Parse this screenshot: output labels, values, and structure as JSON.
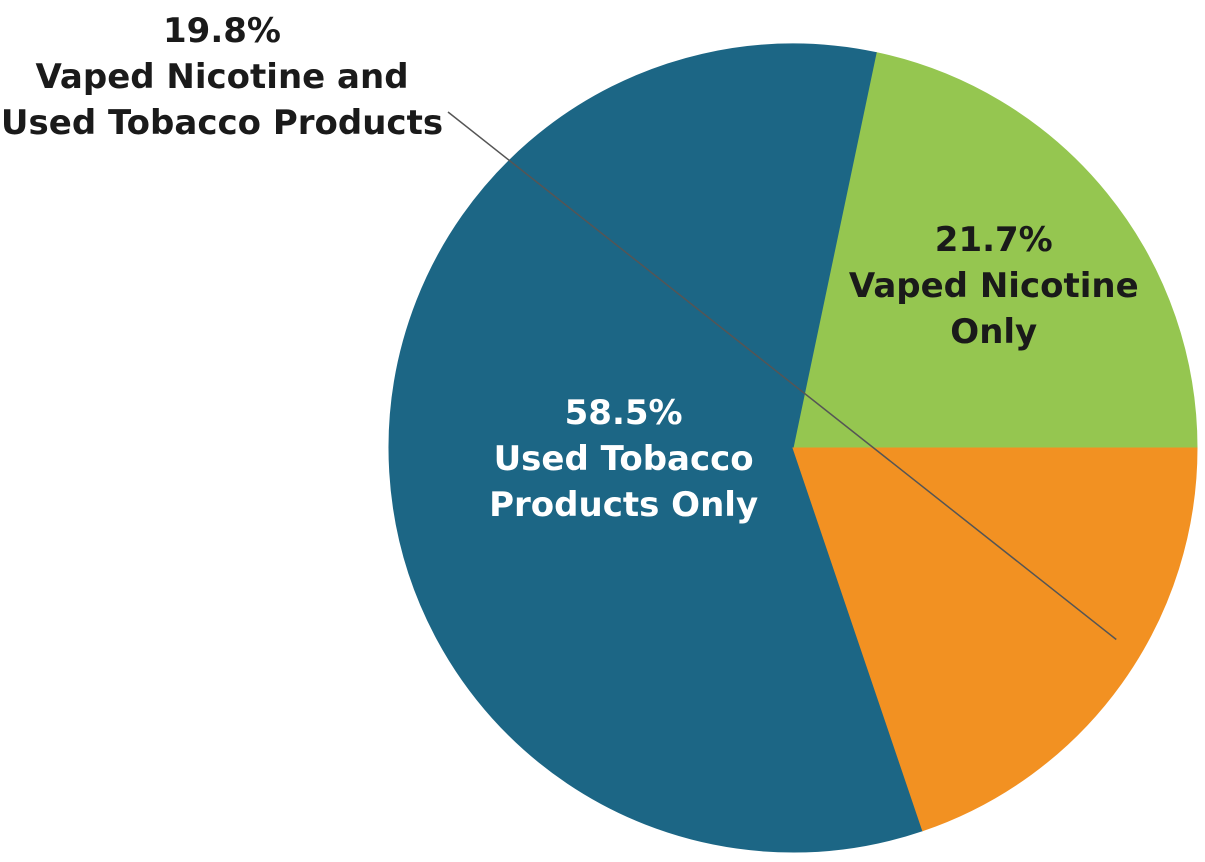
{
  "chart_data": {
    "type": "pie",
    "title": "",
    "slices": [
      {
        "name": "Vaped Nicotine Only",
        "label_lines": [
          "21.7%",
          "Vaped Nicotine",
          "Only"
        ],
        "value": 21.7,
        "color": "#95c650",
        "label_color": "#1a1a1a"
      },
      {
        "name": "Used Tobacco Products Only",
        "label_lines": [
          "58.5%",
          "Used Tobacco",
          "Products Only"
        ],
        "value": 58.5,
        "color": "#1c6685",
        "label_color": "#ffffff"
      },
      {
        "name": "Vaped Nicotine and Used Tobacco Products",
        "label_lines": [
          "19.8%",
          "Vaped Nicotine and",
          "Used Tobacco Products"
        ],
        "value": 19.8,
        "color": "#f29122",
        "label_color": "#1a1a1a",
        "label_outside": true
      }
    ],
    "legend": "none"
  }
}
